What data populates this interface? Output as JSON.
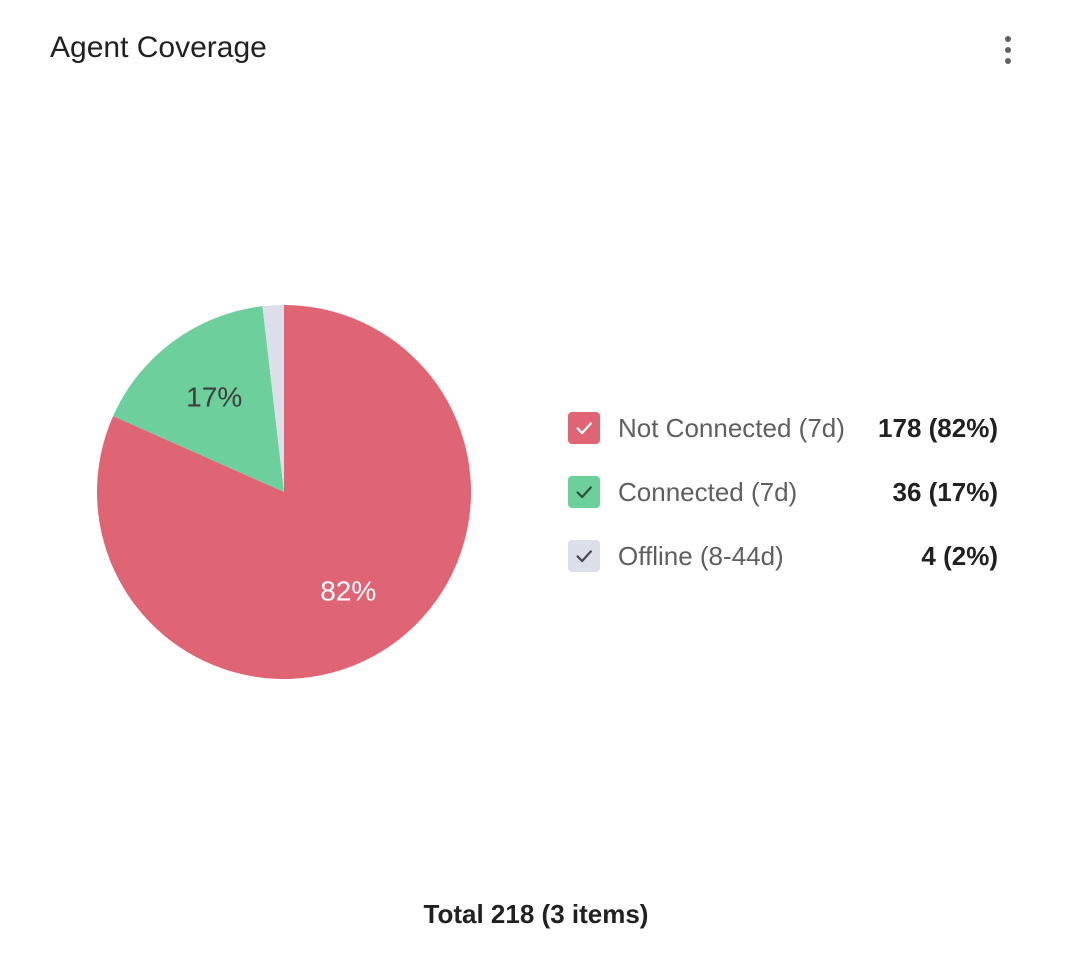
{
  "card": {
    "title": "Agent Coverage",
    "menu_icon": "more-vert-icon"
  },
  "chart_data": {
    "type": "pie",
    "title": "Agent Coverage",
    "slices": [
      {
        "name": "Not Connected (7d)",
        "value": 178,
        "percent": 82,
        "label": "82%",
        "value_text": "178 (82%)",
        "color": "#df6474",
        "label_color": "#ffffff",
        "check_color": "#ffffff",
        "checked": true
      },
      {
        "name": "Connected (7d)",
        "value": 36,
        "percent": 17,
        "label": "17%",
        "value_text": "36 (17%)",
        "color": "#6ccf9c",
        "label_color": "#3d3d3d",
        "check_color": "#2f4f3f",
        "checked": true
      },
      {
        "name": "Offline (8-44d)",
        "value": 4,
        "percent": 2,
        "label": "",
        "value_text": "4 (2%)",
        "color": "#dcdfea",
        "label_color": "#3d3d3d",
        "check_color": "#4a4a4a",
        "checked": true
      }
    ],
    "legend_placement": "right"
  },
  "footer": {
    "total_text": "Total 218 (3 items)"
  }
}
